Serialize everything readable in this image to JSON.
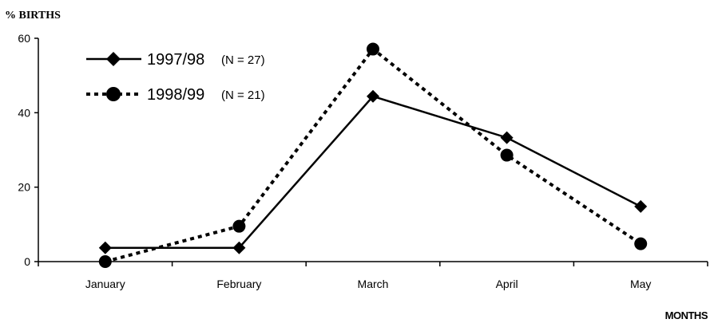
{
  "chart_data": {
    "type": "line",
    "ylabel": "% BIRTHS",
    "xlabel": "MONTHS",
    "categories": [
      "January",
      "February",
      "March",
      "April",
      "May"
    ],
    "ylim": [
      0,
      60
    ],
    "yticks": [
      0,
      20,
      40,
      60
    ],
    "grid": false,
    "legend_position": "top-left",
    "series": [
      {
        "name": "1997/98",
        "note": "(N = 27)",
        "values": [
          3.7,
          3.7,
          44.4,
          33.3,
          14.8
        ],
        "marker": "diamond",
        "line": "solid",
        "color": "#000000"
      },
      {
        "name": "1998/99",
        "note": "(N = 21)",
        "values": [
          0,
          9.5,
          57.1,
          28.6,
          4.8
        ],
        "marker": "circle",
        "line": "dotted",
        "color": "#000000"
      }
    ]
  }
}
